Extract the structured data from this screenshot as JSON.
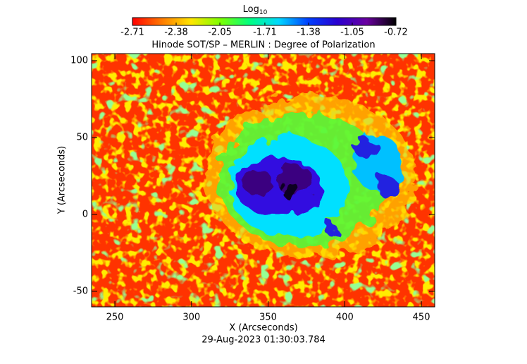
{
  "chart_data": {
    "type": "image",
    "title": "Hinode SOT/SP – MERLIN : Degree of Polarization",
    "colorbar_label": "Log",
    "colorbar_label_sub": "10",
    "colorbar_ticks": [
      -2.71,
      -2.38,
      -2.05,
      -1.71,
      -1.38,
      -1.05,
      -0.72
    ],
    "clim": [
      -2.71,
      -0.72
    ],
    "colormap": [
      "#ff0000",
      "#ff7a00",
      "#ffe600",
      "#7dff00",
      "#00ff80",
      "#00d8ff",
      "#0040ff",
      "#2a00d0",
      "#6a00a0",
      "#000000"
    ],
    "x_label": "X (Arcseconds)",
    "y_label": "Y (Arcseconds)",
    "xlim": [
      234.8,
      458.7
    ],
    "ylim": [
      -60.1,
      104.6
    ],
    "xticks": [
      250,
      300,
      350,
      400,
      450
    ],
    "yticks": [
      -50,
      0,
      50,
      100
    ],
    "footer": "29-Aug-2023 01:30:03.784"
  }
}
